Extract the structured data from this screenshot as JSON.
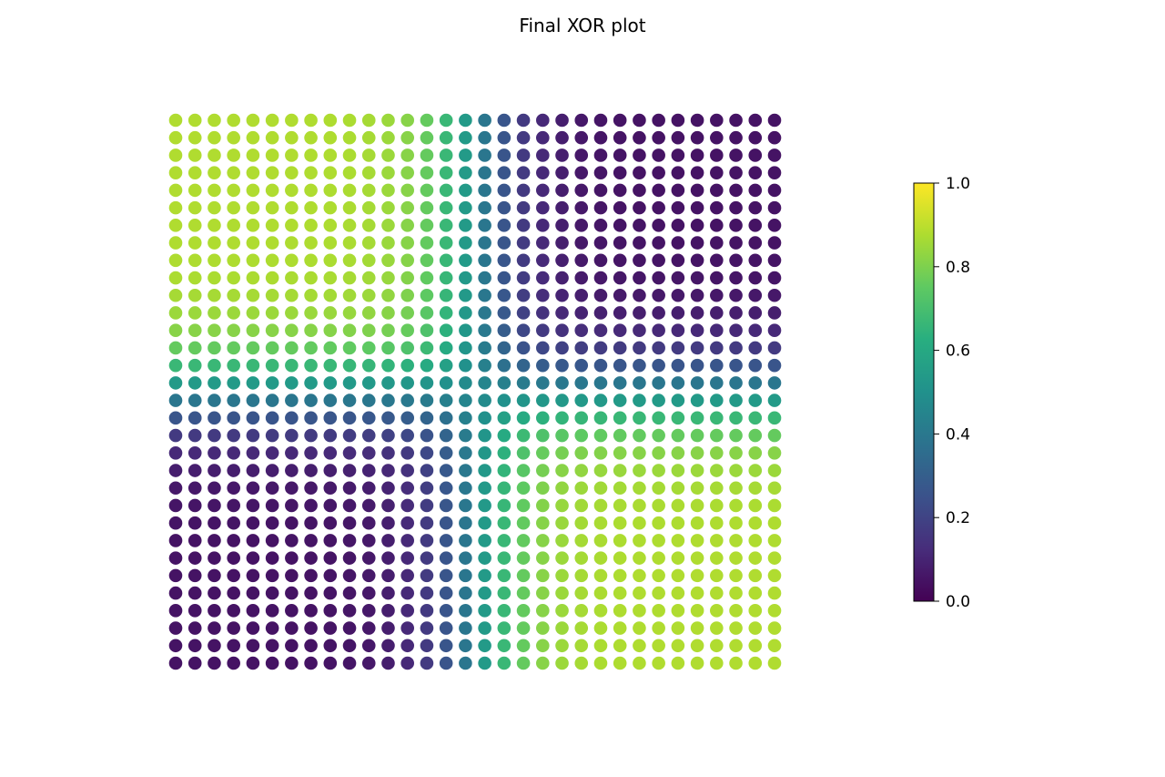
{
  "chart_data": {
    "type": "heatmap",
    "title": "Final XOR plot",
    "xlabel": "",
    "ylabel": "",
    "grid": false,
    "axes_visible": false,
    "marker": "circle",
    "colormap": "viridis",
    "colorbar": {
      "min": 0.0,
      "max": 1.0,
      "ticks": [
        "0.0",
        "0.2",
        "0.4",
        "0.6",
        "0.8",
        "1.0"
      ],
      "placement": "right"
    },
    "grid_cols": 32,
    "grid_rows": 32,
    "value_model": "xor of two sigmoid half-planes along x and y",
    "quadrants": {
      "top-left": 0.88,
      "top-right": 0.05,
      "bottom-left": 0.05,
      "bottom-right": 0.88
    }
  }
}
